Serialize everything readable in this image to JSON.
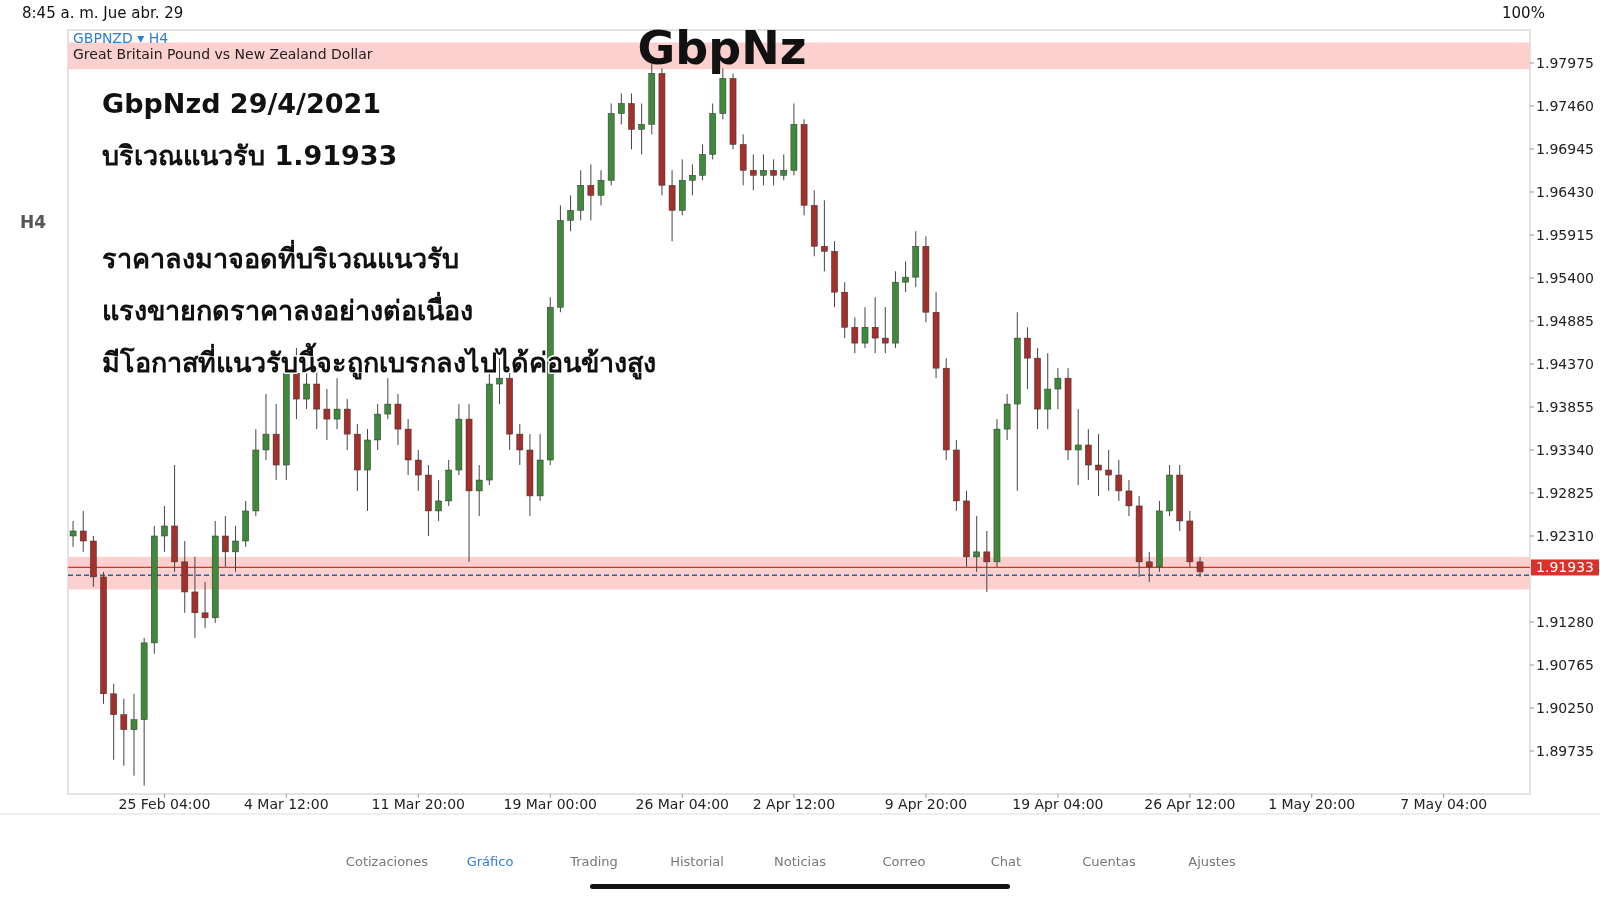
{
  "chart_data": {
    "type": "candlestick",
    "title": "GBPNZD ▾ H4",
    "subtitle": "Great Britain Pound vs New Zealand Dollar",
    "annotations": [
      "GbpNz",
      "GbpNzd 29/4/2021",
      "บริเวณแนวรับ 1.91933",
      "ราคาลงมาจอดที่บริเวณแนวรับ",
      "แรงขายกดราคาลงอย่างต่อเนื่อง",
      "มีโอกาสที่แนวรับนี้จะถูกเบรกลงไปได้ค่อนข้างสูง",
      "8:45 a. m.   Jue abr. 29",
      "100%",
      "H4",
      "Cotizaciones",
      "Gráfico",
      "Trading",
      "Historial",
      "Noticias",
      "Correo",
      "Chat",
      "Cuentas",
      "Ajustes"
    ],
    "categories": [
      null,
      null,
      null,
      null,
      null,
      null,
      null,
      null,
      null,
      "25 Feb 04:00",
      null,
      null,
      null,
      null,
      null,
      null,
      null,
      null,
      null,
      null,
      null,
      "4 Mar 12:00",
      null,
      null,
      null,
      null,
      null,
      null,
      null,
      null,
      null,
      null,
      null,
      null,
      "11 Mar 20:00",
      null,
      null,
      null,
      null,
      null,
      null,
      null,
      null,
      null,
      null,
      null,
      null,
      "19 Mar 00:00",
      null,
      null,
      null,
      null,
      null,
      null,
      null,
      null,
      null,
      null,
      null,
      null,
      "26 Mar 04:00",
      null,
      null,
      null,
      null,
      null,
      null,
      null,
      null,
      null,
      null,
      "2 Apr 12:00",
      null,
      null,
      null,
      null,
      null,
      null,
      null,
      null,
      null,
      null,
      null,
      null,
      "9 Apr 20:00",
      null,
      null,
      null,
      null,
      null,
      null,
      null,
      null,
      null,
      null,
      null,
      null,
      "19 Apr 04:00",
      null,
      null,
      null,
      null,
      null,
      null,
      null,
      null,
      null,
      null,
      null,
      null,
      "26 Apr 12:00",
      null,
      null,
      null,
      null,
      null,
      null,
      null,
      null,
      null,
      null,
      null,
      "1 May 20:00",
      null,
      null,
      null,
      null,
      null,
      null,
      null,
      null,
      null,
      null,
      null,
      null,
      "7 May 04:00",
      null,
      null,
      null,
      null,
      null,
      null,
      null,
      null
    ],
    "ohlc": [
      [
        1.9231,
        1.9249,
        1.9218,
        1.9237
      ],
      [
        1.9237,
        1.9261,
        1.9212,
        1.9225
      ],
      [
        1.9225,
        1.9231,
        1.917,
        1.9182
      ],
      [
        1.9182,
        1.9188,
        1.903,
        1.9042
      ],
      [
        1.9042,
        1.9054,
        1.8963,
        1.9017
      ],
      [
        1.9017,
        1.9036,
        1.8956,
        1.8999
      ],
      [
        1.8999,
        1.9042,
        1.8944,
        1.9011
      ],
      [
        1.9011,
        1.9109,
        1.8932,
        1.9103
      ],
      [
        1.9103,
        1.9243,
        1.909,
        1.9231
      ],
      [
        1.9231,
        1.9267,
        1.9212,
        1.9243
      ],
      [
        1.9243,
        1.9316,
        1.9188,
        1.92
      ],
      [
        1.92,
        1.9225,
        1.9139,
        1.9164
      ],
      [
        1.9164,
        1.9206,
        1.9109,
        1.9139
      ],
      [
        1.9139,
        1.9176,
        1.9121,
        1.9133
      ],
      [
        1.9133,
        1.9249,
        1.9127,
        1.9231
      ],
      [
        1.9231,
        1.9255,
        1.9194,
        1.9212
      ],
      [
        1.9212,
        1.9243,
        1.9188,
        1.9225
      ],
      [
        1.9225,
        1.9273,
        1.9218,
        1.9261
      ],
      [
        1.9261,
        1.9359,
        1.9255,
        1.9334
      ],
      [
        1.9334,
        1.9401,
        1.9322,
        1.9353
      ],
      [
        1.9353,
        1.9389,
        1.9298,
        1.9316
      ],
      [
        1.9316,
        1.9438,
        1.9298,
        1.9426
      ],
      [
        1.9426,
        1.9456,
        1.9371,
        1.9395
      ],
      [
        1.9395,
        1.9438,
        1.9383,
        1.9413
      ],
      [
        1.9413,
        1.9432,
        1.9359,
        1.9383
      ],
      [
        1.9383,
        1.9407,
        1.9346,
        1.9371
      ],
      [
        1.9371,
        1.942,
        1.9359,
        1.9383
      ],
      [
        1.9383,
        1.9395,
        1.9334,
        1.9353
      ],
      [
        1.9353,
        1.9365,
        1.9285,
        1.931
      ],
      [
        1.931,
        1.9359,
        1.9261,
        1.9346
      ],
      [
        1.9346,
        1.9389,
        1.9334,
        1.9377
      ],
      [
        1.9377,
        1.942,
        1.9371,
        1.9389
      ],
      [
        1.9389,
        1.9401,
        1.934,
        1.9359
      ],
      [
        1.9359,
        1.9371,
        1.9304,
        1.9322
      ],
      [
        1.9322,
        1.9334,
        1.9285,
        1.9304
      ],
      [
        1.9304,
        1.9316,
        1.9231,
        1.9261
      ],
      [
        1.9261,
        1.9298,
        1.9249,
        1.9273
      ],
      [
        1.9273,
        1.9322,
        1.9267,
        1.931
      ],
      [
        1.931,
        1.9389,
        1.9304,
        1.9371
      ],
      [
        1.9371,
        1.9389,
        1.92,
        1.9285
      ],
      [
        1.9285,
        1.9316,
        1.9255,
        1.9298
      ],
      [
        1.9298,
        1.9432,
        1.9292,
        1.9413
      ],
      [
        1.9413,
        1.9444,
        1.9389,
        1.942
      ],
      [
        1.942,
        1.9432,
        1.9334,
        1.9353
      ],
      [
        1.9353,
        1.9365,
        1.9316,
        1.9334
      ],
      [
        1.9334,
        1.9353,
        1.9255,
        1.9279
      ],
      [
        1.9279,
        1.9353,
        1.9273,
        1.9322
      ],
      [
        1.9322,
        1.9517,
        1.9316,
        1.9505
      ],
      [
        1.9505,
        1.9627,
        1.9499,
        1.9609
      ],
      [
        1.9609,
        1.9639,
        1.9596,
        1.9621
      ],
      [
        1.9621,
        1.9669,
        1.9609,
        1.9651
      ],
      [
        1.9651,
        1.9676,
        1.9609,
        1.9639
      ],
      [
        1.9639,
        1.9669,
        1.9627,
        1.9657
      ],
      [
        1.9657,
        1.9749,
        1.9651,
        1.9737
      ],
      [
        1.9737,
        1.9761,
        1.9724,
        1.9749
      ],
      [
        1.9749,
        1.9761,
        1.9694,
        1.9718
      ],
      [
        1.9718,
        1.9749,
        1.9688,
        1.9724
      ],
      [
        1.9724,
        1.9797,
        1.9712,
        1.9785
      ],
      [
        1.9785,
        1.9791,
        1.9639,
        1.9651
      ],
      [
        1.9651,
        1.9669,
        1.9584,
        1.9621
      ],
      [
        1.9621,
        1.9682,
        1.9615,
        1.9657
      ],
      [
        1.9657,
        1.9676,
        1.9639,
        1.9663
      ],
      [
        1.9663,
        1.97,
        1.9657,
        1.9688
      ],
      [
        1.9688,
        1.9749,
        1.9682,
        1.9737
      ],
      [
        1.9737,
        1.9791,
        1.973,
        1.9779
      ],
      [
        1.9779,
        1.9785,
        1.9694,
        1.97
      ],
      [
        1.97,
        1.9712,
        1.9651,
        1.9669
      ],
      [
        1.9669,
        1.9688,
        1.9645,
        1.9663
      ],
      [
        1.9663,
        1.9688,
        1.9651,
        1.9669
      ],
      [
        1.9669,
        1.9682,
        1.9651,
        1.9663
      ],
      [
        1.9663,
        1.9688,
        1.9657,
        1.9669
      ],
      [
        1.9669,
        1.9749,
        1.9663,
        1.9724
      ],
      [
        1.9724,
        1.973,
        1.9615,
        1.9627
      ],
      [
        1.9627,
        1.9645,
        1.9566,
        1.9578
      ],
      [
        1.9578,
        1.9633,
        1.9548,
        1.9572
      ],
      [
        1.9572,
        1.9584,
        1.9505,
        1.9523
      ],
      [
        1.9523,
        1.9535,
        1.9468,
        1.9481
      ],
      [
        1.9481,
        1.9493,
        1.945,
        1.9462
      ],
      [
        1.9462,
        1.9505,
        1.9456,
        1.9481
      ],
      [
        1.9481,
        1.9517,
        1.945,
        1.9468
      ],
      [
        1.9468,
        1.9505,
        1.945,
        1.9462
      ],
      [
        1.9462,
        1.9548,
        1.9456,
        1.9535
      ],
      [
        1.9535,
        1.956,
        1.9523,
        1.9541
      ],
      [
        1.9541,
        1.9596,
        1.9529,
        1.9578
      ],
      [
        1.9578,
        1.959,
        1.9487,
        1.9499
      ],
      [
        1.9499,
        1.9523,
        1.942,
        1.9432
      ],
      [
        1.9432,
        1.9444,
        1.9322,
        1.9334
      ],
      [
        1.9334,
        1.9346,
        1.9261,
        1.9273
      ],
      [
        1.9273,
        1.9285,
        1.9194,
        1.9206
      ],
      [
        1.9206,
        1.9255,
        1.9188,
        1.9212
      ],
      [
        1.9212,
        1.9237,
        1.9164,
        1.92
      ],
      [
        1.92,
        1.9371,
        1.9194,
        1.9359
      ],
      [
        1.9359,
        1.9401,
        1.9346,
        1.9389
      ],
      [
        1.9389,
        1.9499,
        1.9285,
        1.9468
      ],
      [
        1.9468,
        1.9481,
        1.9407,
        1.9444
      ],
      [
        1.9444,
        1.9456,
        1.9359,
        1.9383
      ],
      [
        1.9383,
        1.945,
        1.9359,
        1.9407
      ],
      [
        1.9407,
        1.9432,
        1.9383,
        1.942
      ],
      [
        1.942,
        1.9432,
        1.9322,
        1.9334
      ],
      [
        1.9334,
        1.9383,
        1.9292,
        1.934
      ],
      [
        1.934,
        1.9359,
        1.9298,
        1.9316
      ],
      [
        1.9316,
        1.9353,
        1.9279,
        1.931
      ],
      [
        1.931,
        1.9334,
        1.9285,
        1.9304
      ],
      [
        1.9304,
        1.9322,
        1.9273,
        1.9285
      ],
      [
        1.9285,
        1.9298,
        1.9255,
        1.9267
      ],
      [
        1.9267,
        1.9279,
        1.9182,
        1.92
      ],
      [
        1.92,
        1.9212,
        1.9176,
        1.9194
      ],
      [
        1.9194,
        1.9273,
        1.9188,
        1.9261
      ],
      [
        1.9261,
        1.9316,
        1.9255,
        1.9304
      ],
      [
        1.9304,
        1.9316,
        1.9237,
        1.9249
      ],
      [
        1.9249,
        1.9261,
        1.9194,
        1.92
      ],
      [
        1.92,
        1.9206,
        1.9182,
        1.9188
      ],
      null,
      null,
      null,
      null,
      null,
      null,
      null,
      null,
      null,
      null,
      null,
      null,
      null,
      null,
      null,
      null,
      null,
      null,
      null,
      null,
      null,
      null,
      null,
      null,
      null,
      null,
      null,
      null,
      null,
      null,
      null,
      null
    ],
    "ylim": [
      1.8922,
      1.9837
    ],
    "yticks": [
      1.97975,
      {
        "value": 1.9746,
        "label": "1.97460"
      },
      1.96945,
      {
        "value": 1.9643,
        "label": "1.96430"
      },
      1.95915,
      {
        "value": 1.954,
        "label": "1.95400"
      },
      1.94885,
      {
        "value": 1.9437,
        "label": "1.94370"
      },
      1.93855,
      {
        "value": 1.9334,
        "label": "1.93340"
      },
      1.92825,
      {
        "value": 1.9231,
        "label": "1.92310"
      },
      {
        "value": 1.9128,
        "label": "1.91280"
      },
      1.90765,
      {
        "value": 1.9025,
        "label": "1.90250"
      },
      1.89735
    ],
    "ref_lines": [
      {
        "axis": "y",
        "value": 1.91933,
        "label": "1.91933",
        "color": "#d9312b"
      },
      {
        "axis": "y",
        "value": 1.9184,
        "color": "#2f5f9a",
        "line_style": "dashed"
      }
    ],
    "bands": [
      {
        "axis": "y",
        "from": 1.979,
        "to": 1.9822,
        "color": "#fcd0ce"
      },
      {
        "axis": "y",
        "from": 1.9167,
        "to": 1.9206,
        "color": "#fcd0ce"
      }
    ]
  }
}
